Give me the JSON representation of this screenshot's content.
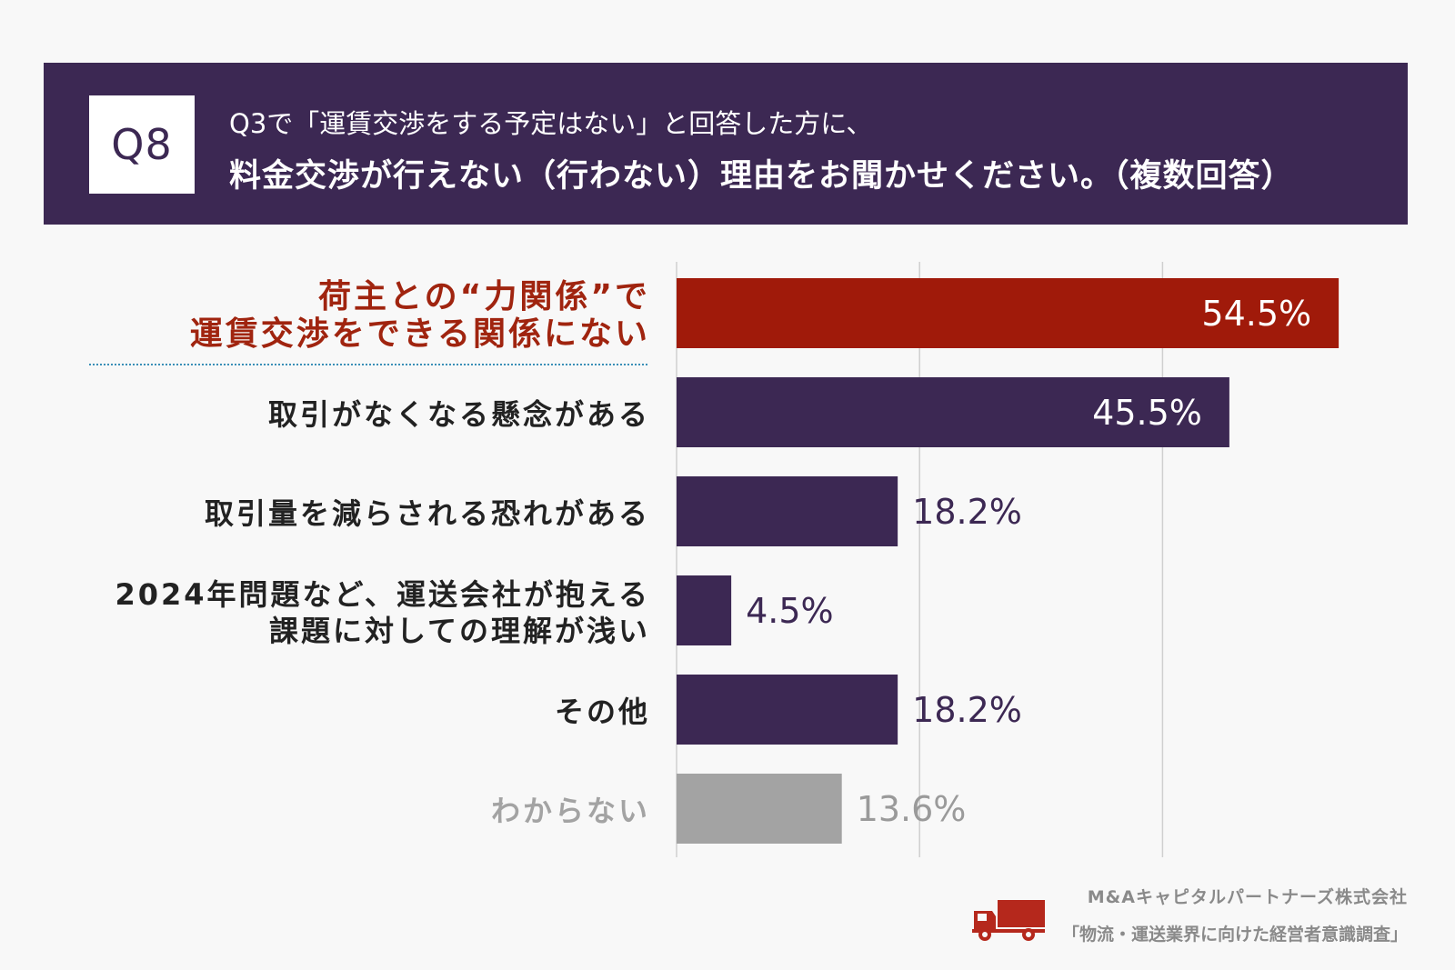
{
  "header": {
    "q_number": "Q8",
    "question_line1": "Q3で「運賃交渉をする予定はない」と回答した方に、",
    "question_line2": "料金交渉が行えない（行わない）理由をお聞かせください。（複数回答）"
  },
  "chart_data": {
    "type": "bar",
    "orientation": "horizontal",
    "categories": [
      "荷主との“力関係”で運賃交渉をできる関係にない",
      "取引がなくなる懸念がある",
      "取引量を減らされる恐れがある",
      "2024年問題など、運送会社が抱える課題に対しての理解が浅い",
      "その他",
      "わからない"
    ],
    "category_lines": [
      [
        "荷主との“力関係”で",
        "運賃交渉をできる関係にない"
      ],
      [
        "取引がなくなる懸念がある"
      ],
      [
        "取引量を減らされる恐れがある"
      ],
      [
        "2024年問題など、運送会社が抱える",
        "課題に対しての理解が浅い"
      ],
      [
        "その他"
      ],
      [
        "わからない"
      ]
    ],
    "values": [
      54.5,
      45.5,
      18.2,
      4.5,
      18.2,
      13.6
    ],
    "value_labels": [
      "54.5%",
      "45.5%",
      "18.2%",
      "4.5%",
      "18.2%",
      "13.6%"
    ],
    "xlim": [
      0,
      60
    ],
    "grid_values": [
      20,
      40
    ],
    "colors": [
      "#a01a0a",
      "#3c2853",
      "#3c2853",
      "#3c2853",
      "#3c2853",
      "#a3a3a3"
    ],
    "highlight_index": 0,
    "muted_index": 5,
    "unit": "%"
  },
  "footer": {
    "company": "M&Aキャピタルパートナーズ株式会社",
    "survey": "「物流・運送業界に向けた経営者意識調査」",
    "icon": "truck-icon",
    "icon_color": "#b5281c"
  }
}
